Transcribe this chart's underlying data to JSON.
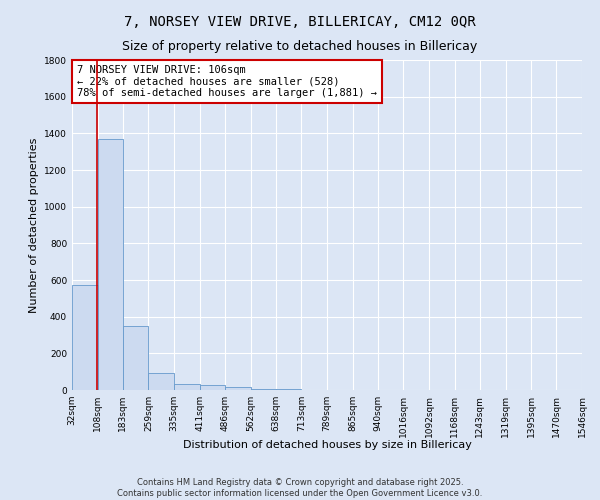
{
  "title": "7, NORSEY VIEW DRIVE, BILLERICAY, CM12 0QR",
  "subtitle": "Size of property relative to detached houses in Billericay",
  "xlabel": "Distribution of detached houses by size in Billericay",
  "ylabel": "Number of detached properties",
  "bar_color": "#ccdaf0",
  "bar_edge_color": "#6699cc",
  "background_color": "#dce6f5",
  "fig_background_color": "#dce6f5",
  "grid_color": "#ffffff",
  "vline_x": 106,
  "vline_color": "#cc0000",
  "bin_edges": [
    32,
    108,
    183,
    259,
    335,
    411,
    486,
    562,
    638,
    713,
    789,
    865,
    940,
    1016,
    1092,
    1168,
    1243,
    1319,
    1395,
    1470,
    1546
  ],
  "bin_counts": [
    575,
    1370,
    350,
    95,
    35,
    30,
    15,
    5,
    3,
    2,
    1,
    1,
    1,
    0,
    0,
    0,
    0,
    0,
    0,
    0
  ],
  "ylim": [
    0,
    1800
  ],
  "yticks": [
    0,
    200,
    400,
    600,
    800,
    1000,
    1200,
    1400,
    1600,
    1800
  ],
  "annotation_line1": "7 NORSEY VIEW DRIVE: 106sqm",
  "annotation_line2": "← 22% of detached houses are smaller (528)",
  "annotation_line3": "78% of semi-detached houses are larger (1,881) →",
  "annotation_box_color": "#ffffff",
  "annotation_box_edge_color": "#cc0000",
  "footer_line1": "Contains HM Land Registry data © Crown copyright and database right 2025.",
  "footer_line2": "Contains public sector information licensed under the Open Government Licence v3.0.",
  "title_fontsize": 10,
  "subtitle_fontsize": 9,
  "ylabel_fontsize": 8,
  "xlabel_fontsize": 8,
  "tick_label_fontsize": 6.5,
  "annotation_fontsize": 7.5,
  "footer_fontsize": 6
}
